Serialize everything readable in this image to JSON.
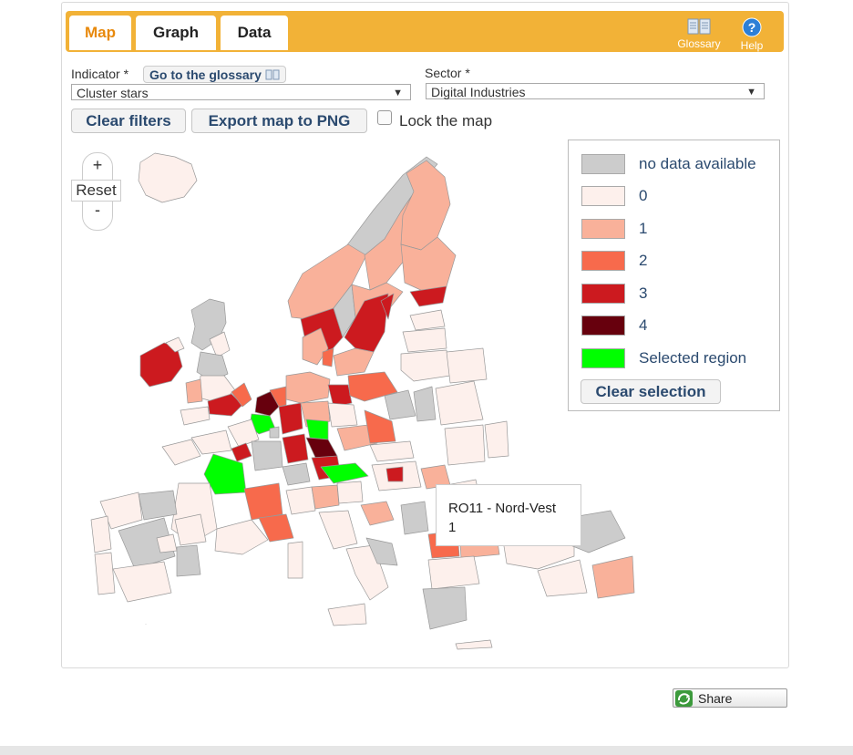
{
  "tabs": [
    {
      "label": "Map",
      "active": true
    },
    {
      "label": "Graph",
      "active": false
    },
    {
      "label": "Data",
      "active": false
    }
  ],
  "toolbar": {
    "glossary_label": "Glossary",
    "help_label": "Help"
  },
  "filters": {
    "indicator_label": "Indicator *",
    "glossary_link": "Go to the glossary",
    "indicator_value": "Cluster stars",
    "sector_label": "Sector *",
    "sector_value": "Digital Industries"
  },
  "actions": {
    "clear_filters": "Clear filters",
    "export_png": "Export map to PNG",
    "lock_map": "Lock the map",
    "lock_checked": false
  },
  "zoom": {
    "plus": "+",
    "reset": "Reset",
    "minus": "-"
  },
  "legend": {
    "items": [
      {
        "label": "no data available",
        "color": "#cccccc"
      },
      {
        "label": "0",
        "color": "#fdf0ec"
      },
      {
        "label": "1",
        "color": "#f9b19a"
      },
      {
        "label": "2",
        "color": "#f76a4c"
      },
      {
        "label": "3",
        "color": "#cc1a1f"
      },
      {
        "label": "4",
        "color": "#67000d"
      },
      {
        "label": "Selected region",
        "color": "#00ff00"
      }
    ],
    "clear_selection": "Clear selection"
  },
  "tooltip": {
    "region": "RO11 - Nord-Vest",
    "value": "1"
  },
  "share_label": "Share",
  "colors": {
    "accent": "#f2b237",
    "active_tab": "#e8890c",
    "link": "#2b4a6f"
  }
}
